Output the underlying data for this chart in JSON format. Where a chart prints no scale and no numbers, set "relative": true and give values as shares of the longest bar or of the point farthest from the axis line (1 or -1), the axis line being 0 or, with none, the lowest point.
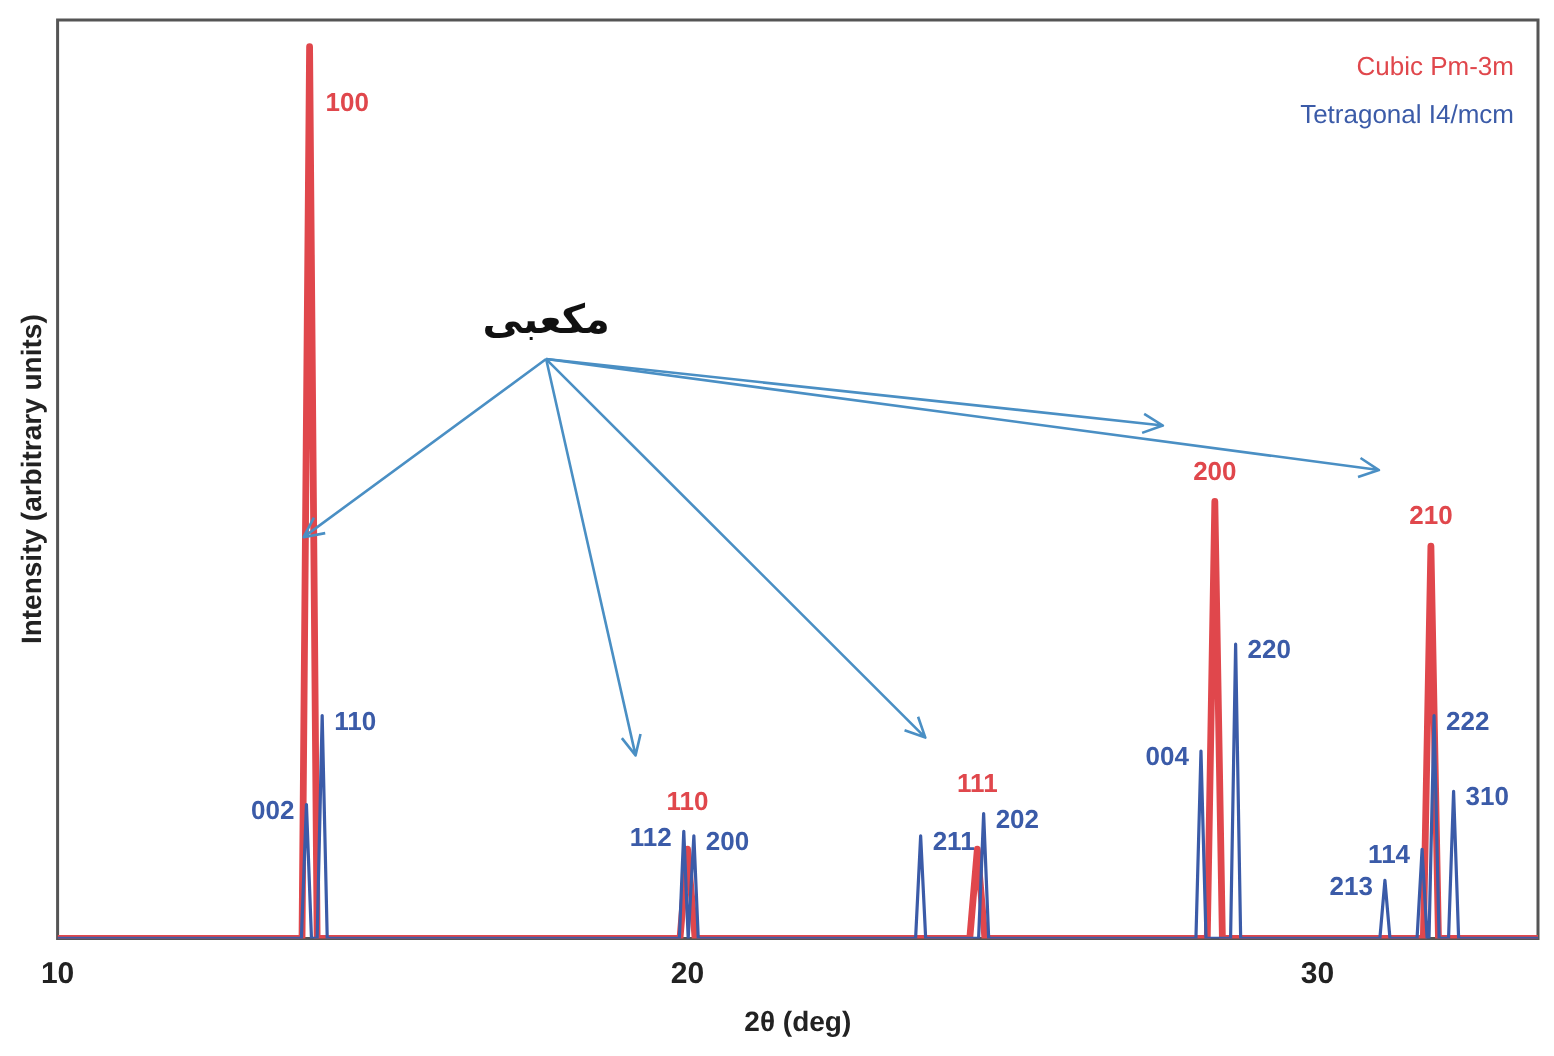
{
  "chart_data": {
    "type": "line",
    "relative": true,
    "xlabel": "2θ (deg)",
    "ylabel": "Intensity (arbitrary units)",
    "xlim": [
      10,
      33.5
    ],
    "xticks": [
      10,
      20,
      30
    ],
    "grid": false,
    "legend": "top right",
    "marker": "none",
    "line_style": "solid",
    "annotations": [
      "مکعبی",
      {
        "text": "100",
        "x": 14.0,
        "y": 1
      },
      {
        "text": "110",
        "x": 20.0,
        "y": 0.1
      },
      {
        "text": "111",
        "x": 24.6,
        "y": 0.1
      },
      {
        "text": "200",
        "x": 28.37,
        "y": 0.49
      },
      {
        "text": "210",
        "x": 31.8,
        "y": 0.44
      },
      {
        "text": "002",
        "x": 13.95,
        "y": 0.15
      },
      {
        "text": "110",
        "x": 14.2,
        "y": 0.25
      },
      {
        "text": "112",
        "x": 19.94,
        "y": 0.12
      },
      {
        "text": "200",
        "x": 20.1,
        "y": 0.115
      },
      {
        "text": "211",
        "x": 23.7,
        "y": 0.115
      },
      {
        "text": "202",
        "x": 24.7,
        "y": 0.14
      },
      {
        "text": "004",
        "x": 28.15,
        "y": 0.21
      },
      {
        "text": "220",
        "x": 28.7,
        "y": 0.33
      },
      {
        "text": "213",
        "x": 31.07,
        "y": 0.065
      },
      {
        "text": "114",
        "x": 31.66,
        "y": 0.1
      },
      {
        "text": "222",
        "x": 31.85,
        "y": 0.25
      },
      {
        "text": "310",
        "x": 32.16,
        "y": 0.165
      }
    ],
    "series": [
      {
        "name": "Cubic Pm-3m",
        "color": "#e0474c",
        "x": [
          10,
          13.88,
          14.0,
          14.12,
          19.88,
          20.0,
          20.12,
          24.48,
          24.6,
          24.72,
          28.25,
          28.37,
          28.49,
          31.68,
          31.8,
          31.92,
          33.5
        ],
        "values": [
          0,
          0,
          1,
          0,
          0,
          0.1,
          0,
          0,
          0.1,
          0,
          0,
          0.49,
          0,
          0,
          0.44,
          0,
          0
        ]
      },
      {
        "name": "Tetragonal I4/mcm",
        "color": "#3b5ba8",
        "x": [
          10,
          13.87,
          13.95,
          14.03,
          14.12,
          14.2,
          14.28,
          19.87,
          19.94,
          20.01,
          20.03,
          20.1,
          20.17,
          23.62,
          23.7,
          23.78,
          24.62,
          24.7,
          24.78,
          28.07,
          28.15,
          28.23,
          28.62,
          28.7,
          28.78,
          30.99,
          31.07,
          31.15,
          31.58,
          31.66,
          31.74,
          31.77,
          31.85,
          31.93,
          32.08,
          32.16,
          32.24,
          33.5
        ],
        "values": [
          0,
          0,
          0.15,
          0,
          0,
          0.25,
          0,
          0,
          0.12,
          0,
          0,
          0.115,
          0,
          0,
          0.115,
          0,
          0,
          0.14,
          0,
          0,
          0.21,
          0,
          0,
          0.33,
          0,
          0,
          0.065,
          0,
          0,
          0.1,
          0,
          0,
          0.25,
          0,
          0,
          0.165,
          0,
          0
        ]
      }
    ]
  }
}
